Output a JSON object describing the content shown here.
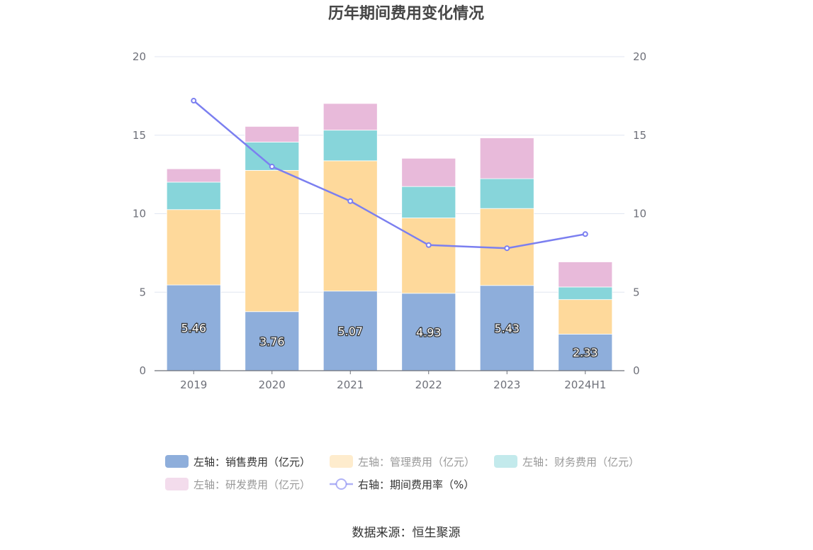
{
  "chart_data": {
    "type": "bar",
    "stacked": true,
    "title": "历年期间费用变化情况",
    "categories": [
      "2019",
      "2020",
      "2021",
      "2022",
      "2023",
      "2024H1"
    ],
    "left_axis": {
      "ylim": [
        0,
        20
      ],
      "ticks": [
        "0",
        "5",
        "10",
        "15",
        "20"
      ]
    },
    "right_axis": {
      "ylim": [
        0,
        20
      ],
      "ticks": [
        "0",
        "5",
        "10",
        "15",
        "20"
      ]
    },
    "series": [
      {
        "name": "左轴：销售费用（亿元）",
        "axis": "left",
        "kind": "bar",
        "color": "#8eaedb",
        "values": [
          5.46,
          3.76,
          5.07,
          4.93,
          5.43,
          2.33
        ],
        "labels": [
          "5.46",
          "3.76",
          "5.07",
          "4.93",
          "5.43",
          "2.33"
        ]
      },
      {
        "name": "左轴：管理费用（亿元）",
        "axis": "left",
        "kind": "bar",
        "color": "#fed99b",
        "values": [
          4.8,
          9.0,
          8.3,
          4.8,
          4.9,
          2.2
        ]
      },
      {
        "name": "左轴：财务费用（亿元）",
        "axis": "left",
        "kind": "bar",
        "color": "#87d5da",
        "values": [
          1.75,
          1.8,
          1.95,
          2.0,
          1.9,
          0.8
        ]
      },
      {
        "name": "左轴：研发费用（亿元）",
        "axis": "left",
        "kind": "bar",
        "color": "#e8bada",
        "values": [
          0.85,
          1.0,
          1.7,
          1.8,
          2.6,
          1.6
        ]
      },
      {
        "name": "右轴：期间费用率（%）",
        "axis": "right",
        "kind": "line",
        "color": "#7b7ff0",
        "values": [
          17.2,
          13.0,
          10.8,
          8.0,
          7.8,
          8.7
        ]
      }
    ],
    "legend_position": "bottom"
  },
  "source": "数据来源：恒生聚源"
}
